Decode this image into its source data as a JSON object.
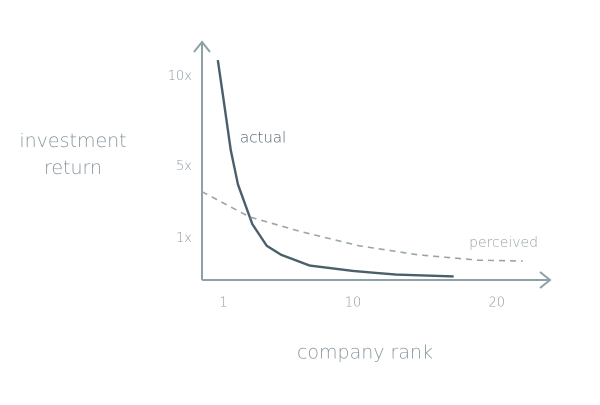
{
  "chart_data": {
    "type": "line",
    "x_label": "company rank",
    "y_label": "investment return",
    "xlim": [
      -0.5,
      23.7
    ],
    "ylim": [
      -1.3,
      11.9
    ],
    "xticks": [
      1,
      10,
      20
    ],
    "yticks": [
      {
        "value": 1,
        "label": "1x"
      },
      {
        "value": 5,
        "label": "5x"
      },
      {
        "value": 10,
        "label": "10x"
      }
    ],
    "grid": false,
    "series": [
      {
        "name": "actual",
        "color": "#4a5f6b",
        "dashed": false,
        "x": [
          0.6,
          1,
          1.5,
          2,
          3,
          4,
          5,
          7,
          10,
          13,
          17
        ],
        "values": [
          10.9,
          8.7,
          5.9,
          4.0,
          1.8,
          0.6,
          0.1,
          -0.5,
          -0.8,
          -1.0,
          -1.1
        ]
      },
      {
        "name": "perceived",
        "color": "#9aa5ab",
        "dashed": true,
        "x": [
          -0.5,
          2.8,
          6.3,
          10.4,
          14.5,
          18.7,
          21.8
        ],
        "values": [
          3.6,
          2.2,
          1.4,
          0.6,
          0.1,
          -0.2,
          -0.25
        ]
      }
    ]
  }
}
